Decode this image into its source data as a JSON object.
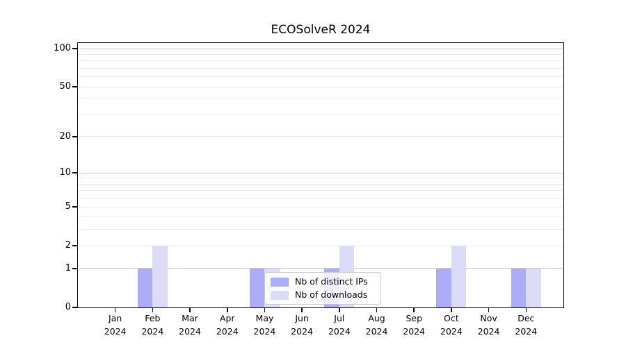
{
  "title": "ECOSolveR 2024",
  "chart_data": {
    "type": "bar",
    "title": "ECOSolveR 2024",
    "xlabel": "",
    "ylabel": "",
    "yscale": "log1p",
    "ylim": [
      0,
      110
    ],
    "y_ticks": [
      0,
      1,
      2,
      5,
      10,
      20,
      50,
      100
    ],
    "grid_major": [
      1,
      10,
      100
    ],
    "grid_minor": [
      2,
      3,
      4,
      5,
      6,
      7,
      8,
      9,
      20,
      30,
      40,
      50,
      60,
      70,
      80,
      90
    ],
    "categories": [
      "Jan",
      "Feb",
      "Mar",
      "Apr",
      "May",
      "Jun",
      "Jul",
      "Aug",
      "Sep",
      "Oct",
      "Nov",
      "Dec"
    ],
    "year": "2024",
    "series": [
      {
        "name": "Nb of distinct IPs",
        "color": "#acacf7",
        "values": [
          0,
          1,
          0,
          0,
          1,
          0,
          1,
          0,
          0,
          1,
          0,
          1
        ]
      },
      {
        "name": "Nb of downloads",
        "color": "#dcdcf9",
        "values": [
          0,
          2,
          0,
          0,
          1,
          0,
          2,
          0,
          0,
          2,
          0,
          1
        ]
      }
    ],
    "legend_position": "lower center",
    "colors": {
      "axis": "#000000",
      "grid_major": "#c9c9c9",
      "grid_minor": "#ebebeb",
      "legend_border": "#cccccc"
    }
  }
}
